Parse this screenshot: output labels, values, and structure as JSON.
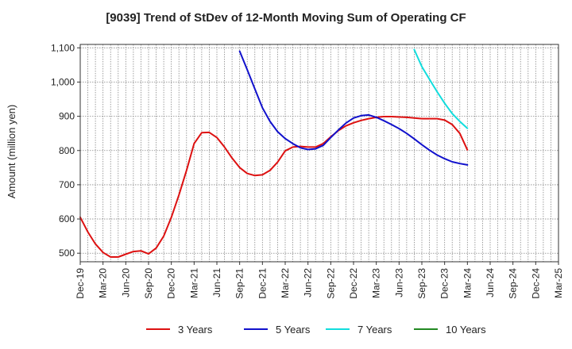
{
  "chart_data": {
    "type": "line",
    "title": "[9039]  Trend of StDev of 12-Month Moving Sum of Operating CF",
    "xlabel": "",
    "ylabel": "Amount (million yen)",
    "ylim": [
      475,
      1110
    ],
    "yticks": [
      500,
      600,
      700,
      800,
      900,
      1000,
      1100
    ],
    "ytick_labels": [
      "500",
      "600",
      "700",
      "800",
      "900",
      "1,000",
      "1,100"
    ],
    "xlim": [
      "2019-12",
      "2025-03"
    ],
    "xtick_labels": [
      "Dec-19",
      "Mar-20",
      "Jun-20",
      "Sep-20",
      "Dec-20",
      "Mar-21",
      "Jun-21",
      "Sep-21",
      "Dec-21",
      "Mar-22",
      "Jun-22",
      "Sep-22",
      "Dec-22",
      "Mar-23",
      "Jun-23",
      "Sep-23",
      "Dec-23",
      "Mar-24",
      "Jun-24",
      "Sep-24",
      "Dec-24",
      "Mar-25"
    ],
    "grid": true,
    "legend_position": "bottom",
    "series": [
      {
        "name": "3 Years",
        "color": "#dd1111",
        "x": [
          "2019-12",
          "2020-01",
          "2020-02",
          "2020-03",
          "2020-04",
          "2020-05",
          "2020-06",
          "2020-07",
          "2020-08",
          "2020-09",
          "2020-10",
          "2020-11",
          "2020-12",
          "2021-01",
          "2021-02",
          "2021-03",
          "2021-04",
          "2021-05",
          "2021-06",
          "2021-07",
          "2021-08",
          "2021-09",
          "2021-10",
          "2021-11",
          "2021-12",
          "2022-01",
          "2022-02",
          "2022-03",
          "2022-04",
          "2022-05",
          "2022-06",
          "2022-07",
          "2022-08",
          "2022-09",
          "2022-10",
          "2022-11",
          "2022-12",
          "2023-01",
          "2023-02",
          "2023-03",
          "2023-04",
          "2023-05",
          "2023-06",
          "2023-07",
          "2023-08",
          "2023-09",
          "2023-10",
          "2023-11",
          "2023-12",
          "2024-01",
          "2024-02",
          "2024-03"
        ],
        "values": [
          605,
          562,
          527,
          502,
          489,
          489,
          497,
          505,
          507,
          498,
          515,
          550,
          605,
          670,
          742,
          820,
          852,
          853,
          838,
          810,
          778,
          750,
          733,
          727,
          729,
          742,
          766,
          799,
          810,
          812,
          810,
          810,
          820,
          840,
          858,
          872,
          881,
          888,
          893,
          897,
          899,
          899,
          898,
          897,
          895,
          893,
          893,
          893,
          889,
          876,
          850,
          802
        ]
      },
      {
        "name": "5 Years",
        "color": "#1111cc",
        "x": [
          "2021-09",
          "2021-10",
          "2021-11",
          "2021-12",
          "2022-01",
          "2022-02",
          "2022-03",
          "2022-04",
          "2022-05",
          "2022-06",
          "2022-07",
          "2022-08",
          "2022-09",
          "2022-10",
          "2022-11",
          "2022-12",
          "2023-01",
          "2023-02",
          "2023-03",
          "2023-04",
          "2023-05",
          "2023-06",
          "2023-07",
          "2023-08",
          "2023-09",
          "2023-10",
          "2023-11",
          "2023-12",
          "2024-01",
          "2024-02",
          "2024-03"
        ],
        "values": [
          1090,
          1036,
          980,
          925,
          885,
          855,
          835,
          820,
          808,
          803,
          805,
          815,
          838,
          860,
          880,
          895,
          902,
          904,
          897,
          887,
          876,
          864,
          850,
          834,
          817,
          801,
          787,
          776,
          767,
          762,
          758
        ]
      },
      {
        "name": "7 Years",
        "color": "#11dddd",
        "x": [
          "2023-08",
          "2023-09",
          "2023-10",
          "2023-11",
          "2023-12",
          "2024-01",
          "2024-02",
          "2024-03"
        ],
        "values": [
          1095,
          1045,
          1008,
          972,
          938,
          908,
          885,
          865
        ]
      },
      {
        "name": "10 Years",
        "color": "#228822",
        "x": [],
        "values": []
      }
    ]
  }
}
